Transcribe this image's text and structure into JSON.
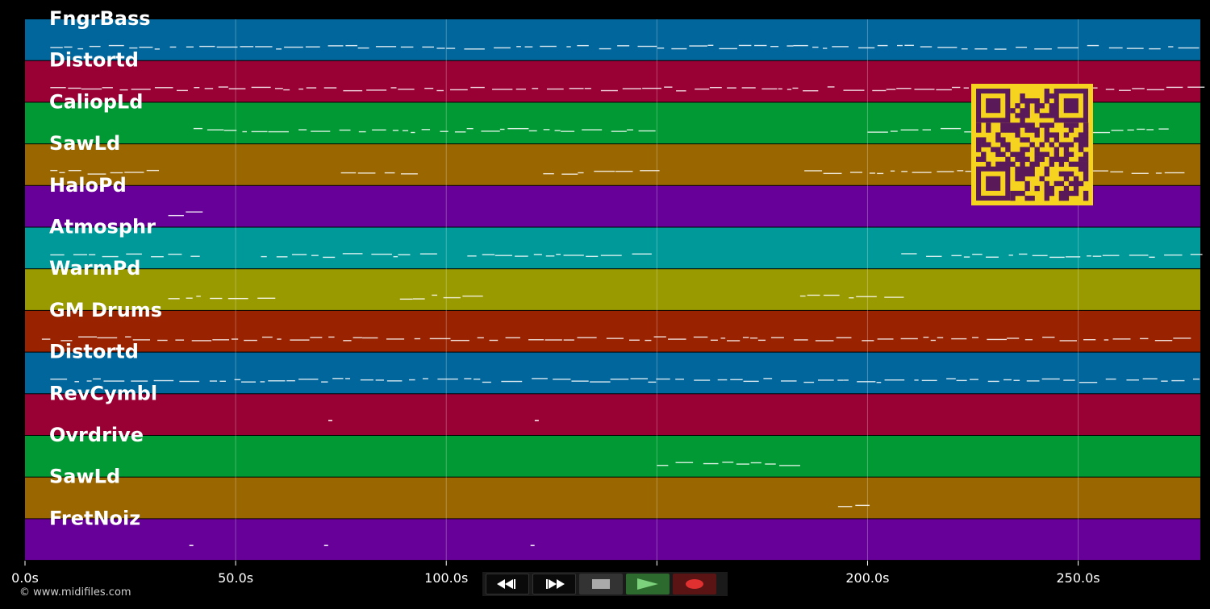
{
  "tracks": [
    {
      "name": "FngrBass",
      "color": "#00669b"
    },
    {
      "name": "Distortd",
      "color": "#990033"
    },
    {
      "name": "CaliopLd",
      "color": "#009933"
    },
    {
      "name": "SawLd",
      "color": "#996600"
    },
    {
      "name": "HaloPd",
      "color": "#660099"
    },
    {
      "name": "Atmosphr",
      "color": "#009999"
    },
    {
      "name": "WarmPd",
      "color": "#999900"
    },
    {
      "name": "GM Drums",
      "color": "#992200"
    },
    {
      "name": "Distortd",
      "color": "#00669b"
    },
    {
      "name": "RevCymbl",
      "color": "#990033"
    },
    {
      "name": "Ovrdrive",
      "color": "#009933"
    },
    {
      "name": "SawLd",
      "color": "#996600"
    },
    {
      "name": "FretNoiz",
      "color": "#660099"
    }
  ],
  "time_axis": {
    "max_seconds": 279,
    "ticks": [
      0,
      50,
      100,
      150,
      200,
      250
    ],
    "labels": [
      "0.0s",
      "50.0s",
      "100.0s",
      "150.0s",
      "200.0s",
      "250.0s"
    ]
  },
  "qr_code": {
    "foreground": "#5a1a5a",
    "background": "#f5d31e"
  },
  "transport": {
    "buttons": [
      {
        "name": "rewind-button",
        "icon": "rewind-icon"
      },
      {
        "name": "fast-forward-button",
        "icon": "fast-forward-icon"
      },
      {
        "name": "stop-button",
        "icon": "stop-icon"
      },
      {
        "name": "play-button",
        "icon": "play-icon"
      },
      {
        "name": "record-button",
        "icon": "record-icon"
      }
    ]
  },
  "copyright": "© www.midifiles.com"
}
